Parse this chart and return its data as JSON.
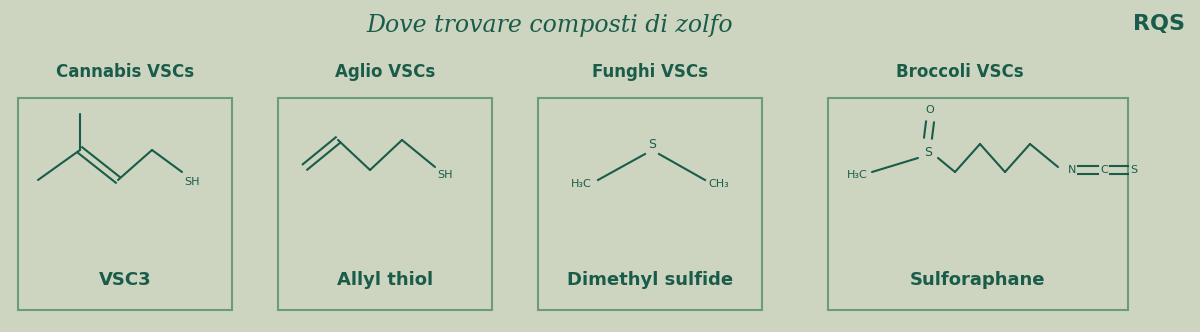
{
  "bg_color": "#cdd5c0",
  "dark_green": "#1a5c4a",
  "box_color": "#6b9b7a",
  "title": "Dove trovare composti di zolfo",
  "title_fontsize": 17,
  "rqs_text": "RQS",
  "categories": [
    "Cannabis VSCs",
    "Aglio VSCs",
    "Funghi VSCs",
    "Broccoli VSCs"
  ],
  "compound_names": [
    "VSC3",
    "Allyl thiol",
    "Dimethyl sulfide",
    "Sulforaphane"
  ],
  "cat_fontsize": 12,
  "compound_fontsize": 12
}
